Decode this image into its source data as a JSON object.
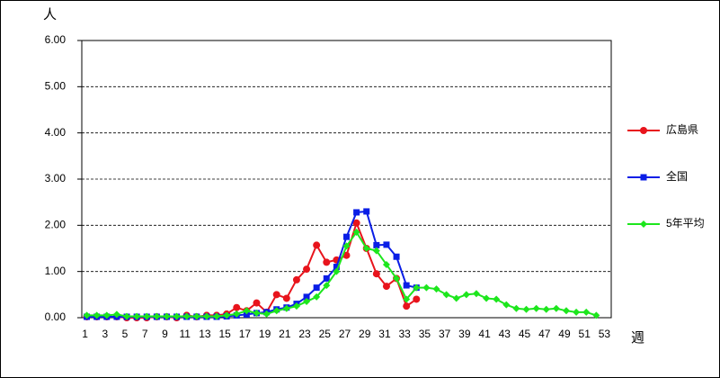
{
  "chart_data": {
    "type": "line",
    "y_unit": "人",
    "x_unit": "週",
    "categories": [
      1,
      null,
      3,
      null,
      5,
      null,
      7,
      null,
      9,
      null,
      11,
      null,
      13,
      null,
      15,
      null,
      17,
      null,
      19,
      null,
      21,
      null,
      23,
      null,
      25,
      null,
      27,
      null,
      29,
      null,
      31,
      null,
      33,
      null,
      35,
      null,
      37,
      null,
      39,
      null,
      41,
      null,
      43,
      null,
      45,
      null,
      47,
      null,
      49,
      null,
      51,
      null,
      53
    ],
    "series": [
      {
        "name": "広島県",
        "color": "#e8141c",
        "marker": "circle",
        "values": [
          0.02,
          0.02,
          0.02,
          0.02,
          0,
          0,
          0,
          0.02,
          0.02,
          0,
          0.05,
          0.02,
          0.05,
          0.05,
          0.08,
          0.22,
          0.15,
          0.32,
          0.12,
          0.5,
          0.42,
          0.82,
          1.05,
          1.57,
          1.2,
          1.25,
          1.35,
          2.05,
          1.5,
          0.95,
          0.68,
          0.85,
          0.25,
          0.4,
          null,
          null,
          null,
          null,
          null,
          null,
          null,
          null,
          null,
          null,
          null,
          null,
          null,
          null,
          null,
          null,
          null,
          null,
          null
        ]
      },
      {
        "name": "全国",
        "color": "#0a1ee6",
        "marker": "square",
        "values": [
          0.02,
          0.02,
          0.02,
          0.02,
          0.02,
          0.02,
          0.02,
          0.02,
          0.02,
          0.02,
          0.02,
          0.02,
          0.02,
          0.02,
          0.03,
          0.05,
          0.07,
          0.1,
          0.12,
          0.18,
          0.22,
          0.3,
          0.45,
          0.65,
          0.85,
          1.1,
          1.75,
          2.28,
          2.3,
          1.57,
          1.58,
          1.32,
          0.7,
          0.65,
          null,
          null,
          null,
          null,
          null,
          null,
          null,
          null,
          null,
          null,
          null,
          null,
          null,
          null,
          null,
          null,
          null,
          null,
          null
        ]
      },
      {
        "name": "5年平均",
        "color": "#1de61d",
        "marker": "diamond",
        "values": [
          0.05,
          0.05,
          0.05,
          0.07,
          0.03,
          0.03,
          0.03,
          0.03,
          0.03,
          0.03,
          0.03,
          0.03,
          0.03,
          0.03,
          0.05,
          0.08,
          0.15,
          0.1,
          0.08,
          0.15,
          0.2,
          0.25,
          0.35,
          0.45,
          0.7,
          1.0,
          1.55,
          1.85,
          1.5,
          1.45,
          1.15,
          0.85,
          0.4,
          0.65,
          0.65,
          0.62,
          0.5,
          0.42,
          0.5,
          0.52,
          0.42,
          0.4,
          0.28,
          0.2,
          0.18,
          0.2,
          0.18,
          0.2,
          0.15,
          0.12,
          0.12,
          0.05,
          null
        ]
      }
    ],
    "ylim": [
      0,
      6
    ],
    "yticks": [
      {
        "value": 0,
        "label": "0.00"
      },
      {
        "value": 1,
        "label": "1.00"
      },
      {
        "value": 2,
        "label": "2.00"
      },
      {
        "value": 3,
        "label": "3.00"
      },
      {
        "value": 4,
        "label": "4.00"
      },
      {
        "value": 5,
        "label": "5.00"
      },
      {
        "value": 6,
        "label": "6.00"
      }
    ],
    "grid": true,
    "legend": "right"
  }
}
